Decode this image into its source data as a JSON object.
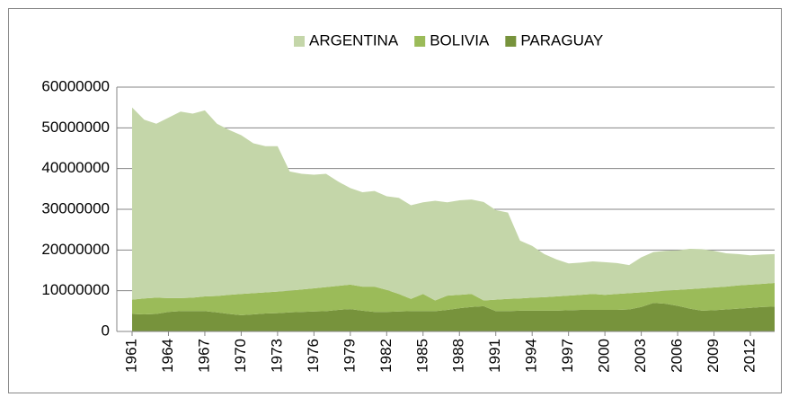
{
  "chart_data": {
    "type": "stacked_area",
    "x": [
      1961,
      1962,
      1963,
      1964,
      1965,
      1966,
      1967,
      1968,
      1969,
      1970,
      1971,
      1972,
      1973,
      1974,
      1975,
      1976,
      1977,
      1978,
      1979,
      1980,
      1981,
      1982,
      1983,
      1984,
      1985,
      1986,
      1987,
      1988,
      1989,
      1990,
      1991,
      1992,
      1993,
      1994,
      1995,
      1996,
      1997,
      1998,
      1999,
      2000,
      2001,
      2002,
      2003,
      2004,
      2005,
      2006,
      2007,
      2008,
      2009,
      2010,
      2011,
      2012,
      2013,
      2014
    ],
    "series": [
      {
        "name": "ARGENTINA",
        "color": "#c4d6a9",
        "values": [
          47200000,
          43900000,
          42700000,
          44300000,
          45800000,
          45200000,
          45700000,
          42300000,
          40500000,
          39000000,
          36800000,
          35900000,
          35700000,
          29300000,
          28400000,
          27900000,
          27800000,
          25600000,
          23700000,
          23200000,
          23500000,
          23000000,
          23600000,
          23000000,
          22500000,
          24500000,
          22900000,
          23200000,
          23200000,
          24200000,
          22000000,
          21200000,
          14200000,
          12700000,
          10600000,
          9100000,
          7900000,
          7900000,
          8000000,
          8000000,
          7600000,
          6900000,
          8600000,
          9700000,
          9800000,
          9700000,
          9900000,
          9600000,
          9000000,
          8200000,
          7700000,
          7200000,
          7200000,
          7100000
        ]
      },
      {
        "name": "BOLIVIA",
        "color": "#9bbb59",
        "values": [
          3500000,
          3900000,
          4000000,
          3400000,
          3200000,
          3300000,
          3600000,
          4000000,
          4700000,
          5200000,
          5200000,
          5200000,
          5300000,
          5300000,
          5500000,
          5700000,
          5900000,
          5900000,
          6000000,
          5900000,
          6200000,
          5400000,
          4300000,
          3000000,
          4200000,
          2600000,
          3500000,
          3300000,
          3200000,
          1400000,
          2800000,
          3000000,
          3000000,
          3200000,
          3300000,
          3500000,
          3600000,
          3700000,
          3900000,
          3700000,
          3900000,
          4000000,
          3600000,
          2800000,
          3200000,
          3900000,
          4800000,
          5500000,
          5600000,
          5600000,
          5700000,
          5700000,
          5700000,
          5800000
        ]
      },
      {
        "name": "PARAGUAY",
        "color": "#77933c",
        "values": [
          4300000,
          4200000,
          4300000,
          4800000,
          5000000,
          5000000,
          5000000,
          4700000,
          4300000,
          4000000,
          4200000,
          4400000,
          4500000,
          4700000,
          4800000,
          4900000,
          5000000,
          5300000,
          5500000,
          5100000,
          4800000,
          4800000,
          4900000,
          5000000,
          5000000,
          5000000,
          5300000,
          5700000,
          6000000,
          6200000,
          5000000,
          5000000,
          5100000,
          5100000,
          5100000,
          5100000,
          5200000,
          5300000,
          5300000,
          5300000,
          5300000,
          5400000,
          6000000,
          7000000,
          6800000,
          6300000,
          5600000,
          5100000,
          5200000,
          5400000,
          5600000,
          5800000,
          6000000,
          6100000
        ]
      }
    ],
    "xlim": [
      1961,
      2014
    ],
    "xticks": [
      1961,
      1964,
      1967,
      1970,
      1973,
      1976,
      1979,
      1982,
      1985,
      1988,
      1991,
      1994,
      1997,
      2000,
      2003,
      2006,
      2009,
      2012
    ],
    "ylim": [
      0,
      60000000
    ],
    "yticks": [
      0,
      10000000,
      20000000,
      30000000,
      40000000,
      50000000,
      60000000
    ],
    "grid": true,
    "legend": "top"
  }
}
